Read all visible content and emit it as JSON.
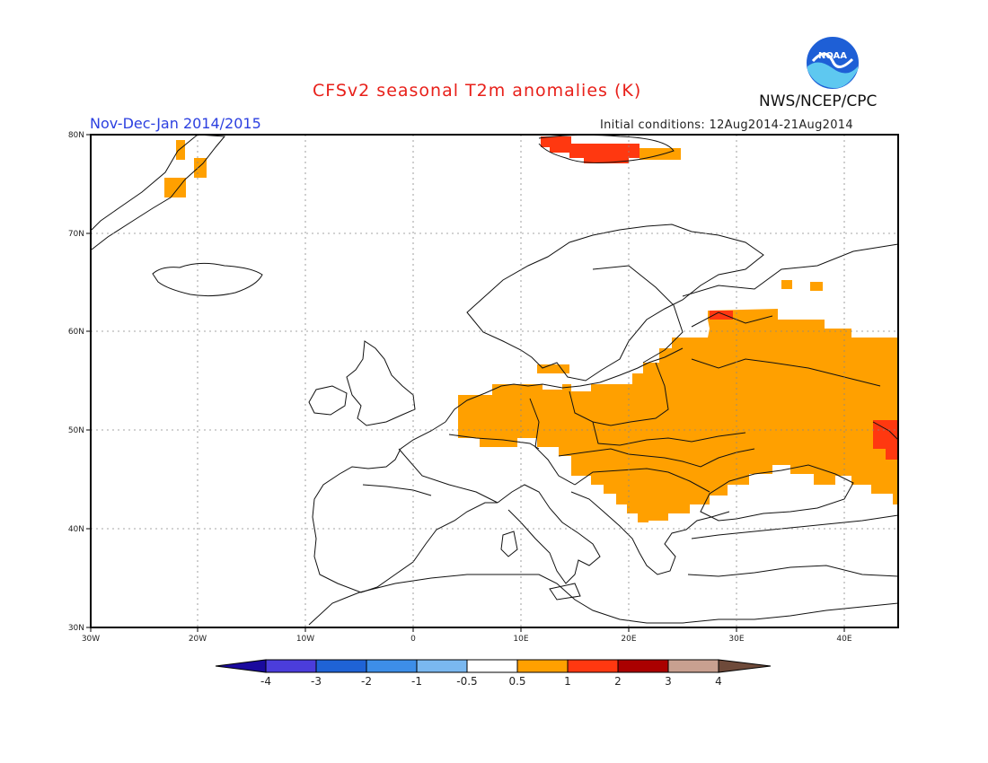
{
  "header": {
    "title": "CFSv2 seasonal T2m anomalies (K)",
    "season": "Nov-Dec-Jan 2014/2015",
    "initial_conditions": "Initial conditions: 12Aug2014-21Aug2014",
    "agency": "NWS/NCEP/CPC",
    "logo_text": "NOAA"
  },
  "axes": {
    "x_ticks": [
      "30W",
      "20W",
      "10W",
      "0",
      "10E",
      "20E",
      "30E",
      "40E"
    ],
    "y_ticks": [
      "80N",
      "70N",
      "60N",
      "50N",
      "40N",
      "30N"
    ]
  },
  "colorbar": {
    "labels": [
      "-4",
      "-3",
      "-2",
      "-1",
      "-0.5",
      "0.5",
      "1",
      "2",
      "3",
      "4"
    ],
    "colors": [
      "#1a0a9e",
      "#4b3ddb",
      "#1f63d6",
      "#3d8ee8",
      "#7ab8f0",
      "#ffffff",
      "#ffa000",
      "#ff3810",
      "#aa0000",
      "#c8a090",
      "#6e4a3a"
    ]
  },
  "colors": {
    "anomaly_0_5_to_1": "#ffa000",
    "anomaly_1_to_2": "#ff3810"
  }
}
